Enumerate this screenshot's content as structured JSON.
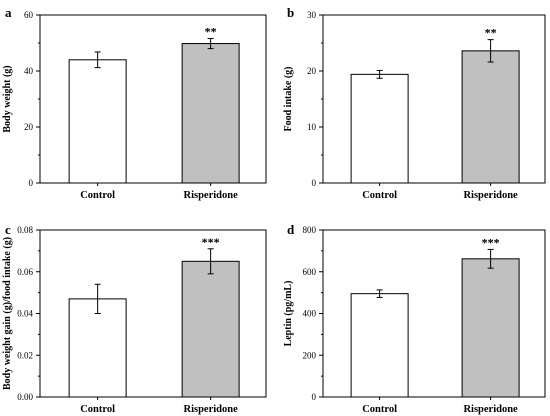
{
  "colors": {
    "control_fill": "#ffffff",
    "risperidone_fill": "#c0c0c0",
    "stroke": "#000000"
  },
  "chart_data": [
    {
      "panel": "a",
      "type": "bar",
      "title": "",
      "ylabel": "Body weight (g)",
      "xlabel": "",
      "categories": [
        "Control",
        "Risperidone"
      ],
      "values": [
        44,
        49.8
      ],
      "errors": [
        2.8,
        1.8
      ],
      "significance": [
        "",
        "**"
      ],
      "ylim": [
        0,
        60
      ],
      "yticks": [
        0,
        20,
        40,
        60
      ],
      "ytick_labels": [
        "0",
        "20",
        "40",
        "60"
      ],
      "grid": false
    },
    {
      "panel": "b",
      "type": "bar",
      "title": "",
      "ylabel": "Food intake (g)",
      "xlabel": "",
      "categories": [
        "Control",
        "Risperidone"
      ],
      "values": [
        19.4,
        23.6
      ],
      "errors": [
        0.7,
        2.0
      ],
      "significance": [
        "",
        "**"
      ],
      "ylim": [
        0,
        30
      ],
      "yticks": [
        0,
        10,
        20,
        30
      ],
      "ytick_labels": [
        "0",
        "10",
        "20",
        "30"
      ],
      "grid": false
    },
    {
      "panel": "c",
      "type": "bar",
      "title": "",
      "ylabel": "Body weight gain (g)/food intake (g)",
      "xlabel": "",
      "categories": [
        "Control",
        "Risperidone"
      ],
      "values": [
        0.047,
        0.065
      ],
      "errors": [
        0.007,
        0.006
      ],
      "significance": [
        "",
        "***"
      ],
      "ylim": [
        0,
        0.08
      ],
      "yticks": [
        0,
        0.02,
        0.04,
        0.06,
        0.08
      ],
      "ytick_labels": [
        "0.00",
        "0.02",
        "0.04",
        "0.06",
        "0.08"
      ],
      "grid": false
    },
    {
      "panel": "d",
      "type": "bar",
      "title": "",
      "ylabel": "Leptin (pg/mL)",
      "xlabel": "",
      "categories": [
        "Control",
        "Risperidone"
      ],
      "values": [
        495,
        662
      ],
      "errors": [
        18,
        45
      ],
      "significance": [
        "",
        "***"
      ],
      "ylim": [
        0,
        800
      ],
      "yticks": [
        0,
        200,
        400,
        600,
        800
      ],
      "ytick_labels": [
        "0",
        "200",
        "400",
        "600",
        "800"
      ],
      "grid": false
    }
  ]
}
